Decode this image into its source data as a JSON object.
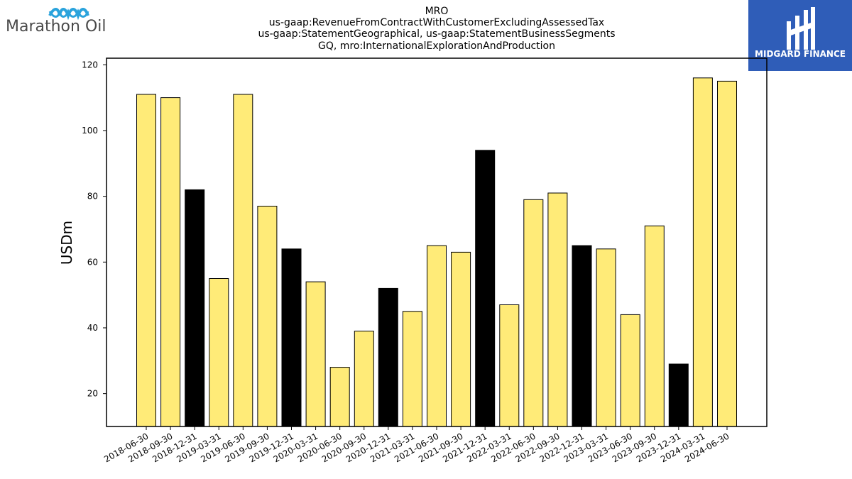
{
  "logos": {
    "left_text": "Marathon Oil",
    "right_text": "MIDGARD FINANCE"
  },
  "colors": {
    "bar_default": "#ffeb78",
    "bar_highlight": "#000000",
    "right_logo_bg": "#2f5db8",
    "left_logo_wave": "#2aa3dc"
  },
  "chart_data": {
    "type": "bar",
    "title": [
      "MRO",
      "us-gaap:RevenueFromContractWithCustomerExcludingAssessedTax",
      "us-gaap:StatementGeographical, us-gaap:StatementBusinessSegments",
      "GQ, mro:InternationalExplorationAndProduction"
    ],
    "xlabel": "",
    "ylabel": "USDm",
    "ylim": [
      10,
      122
    ],
    "yticks": [
      20,
      40,
      60,
      80,
      100,
      120
    ],
    "grid": false,
    "categories": [
      "2018-06-30",
      "2018-09-30",
      "2018-12-31",
      "2019-03-31",
      "2019-06-30",
      "2019-09-30",
      "2019-12-31",
      "2020-03-31",
      "2020-06-30",
      "2020-09-30",
      "2020-12-31",
      "2021-03-31",
      "2021-06-30",
      "2021-09-30",
      "2021-12-31",
      "2022-03-31",
      "2022-06-30",
      "2022-09-30",
      "2022-12-31",
      "2023-03-31",
      "2023-06-30",
      "2023-09-30",
      "2023-12-31",
      "2024-03-31",
      "2024-06-30"
    ],
    "values": [
      111,
      110,
      82,
      55,
      111,
      77,
      64,
      54,
      28,
      39,
      52,
      45,
      65,
      63,
      94,
      47,
      79,
      81,
      65,
      64,
      44,
      71,
      29,
      116,
      115
    ],
    "highlight": [
      false,
      false,
      true,
      false,
      false,
      false,
      true,
      false,
      false,
      false,
      true,
      false,
      false,
      false,
      true,
      false,
      false,
      false,
      true,
      false,
      false,
      false,
      true,
      false,
      false
    ]
  }
}
